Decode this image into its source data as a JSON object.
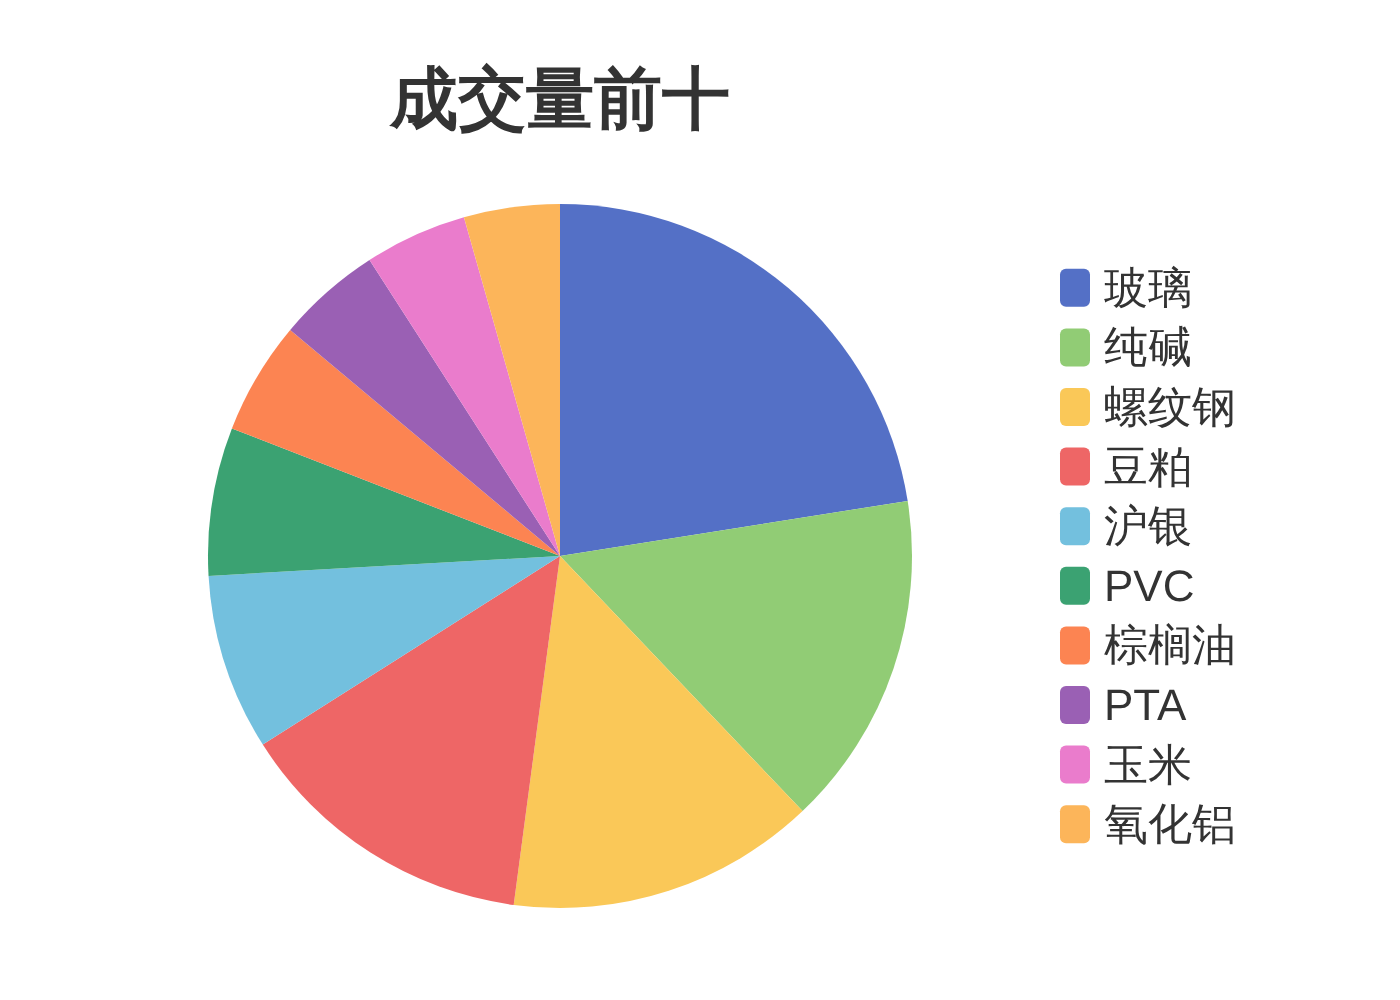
{
  "chart_data": {
    "type": "pie",
    "title": "成交量前十",
    "categories": [
      "玻璃",
      "纯碱",
      "螺纹钢",
      "豆粕",
      "沪银",
      "PVC",
      "棕榈油",
      "PTA",
      "玉米",
      "氧化铝"
    ],
    "values": [
      22.5,
      15.4,
      14.2,
      13.9,
      8.1,
      6.8,
      5.2,
      4.8,
      4.7,
      4.4
    ],
    "colors": [
      "#5470c6",
      "#91cc75",
      "#fac858",
      "#ee6666",
      "#73c0de",
      "#3ba272",
      "#fc8452",
      "#9a60b4",
      "#ea7ccc",
      "#fcb55a"
    ],
    "legend": "right"
  }
}
